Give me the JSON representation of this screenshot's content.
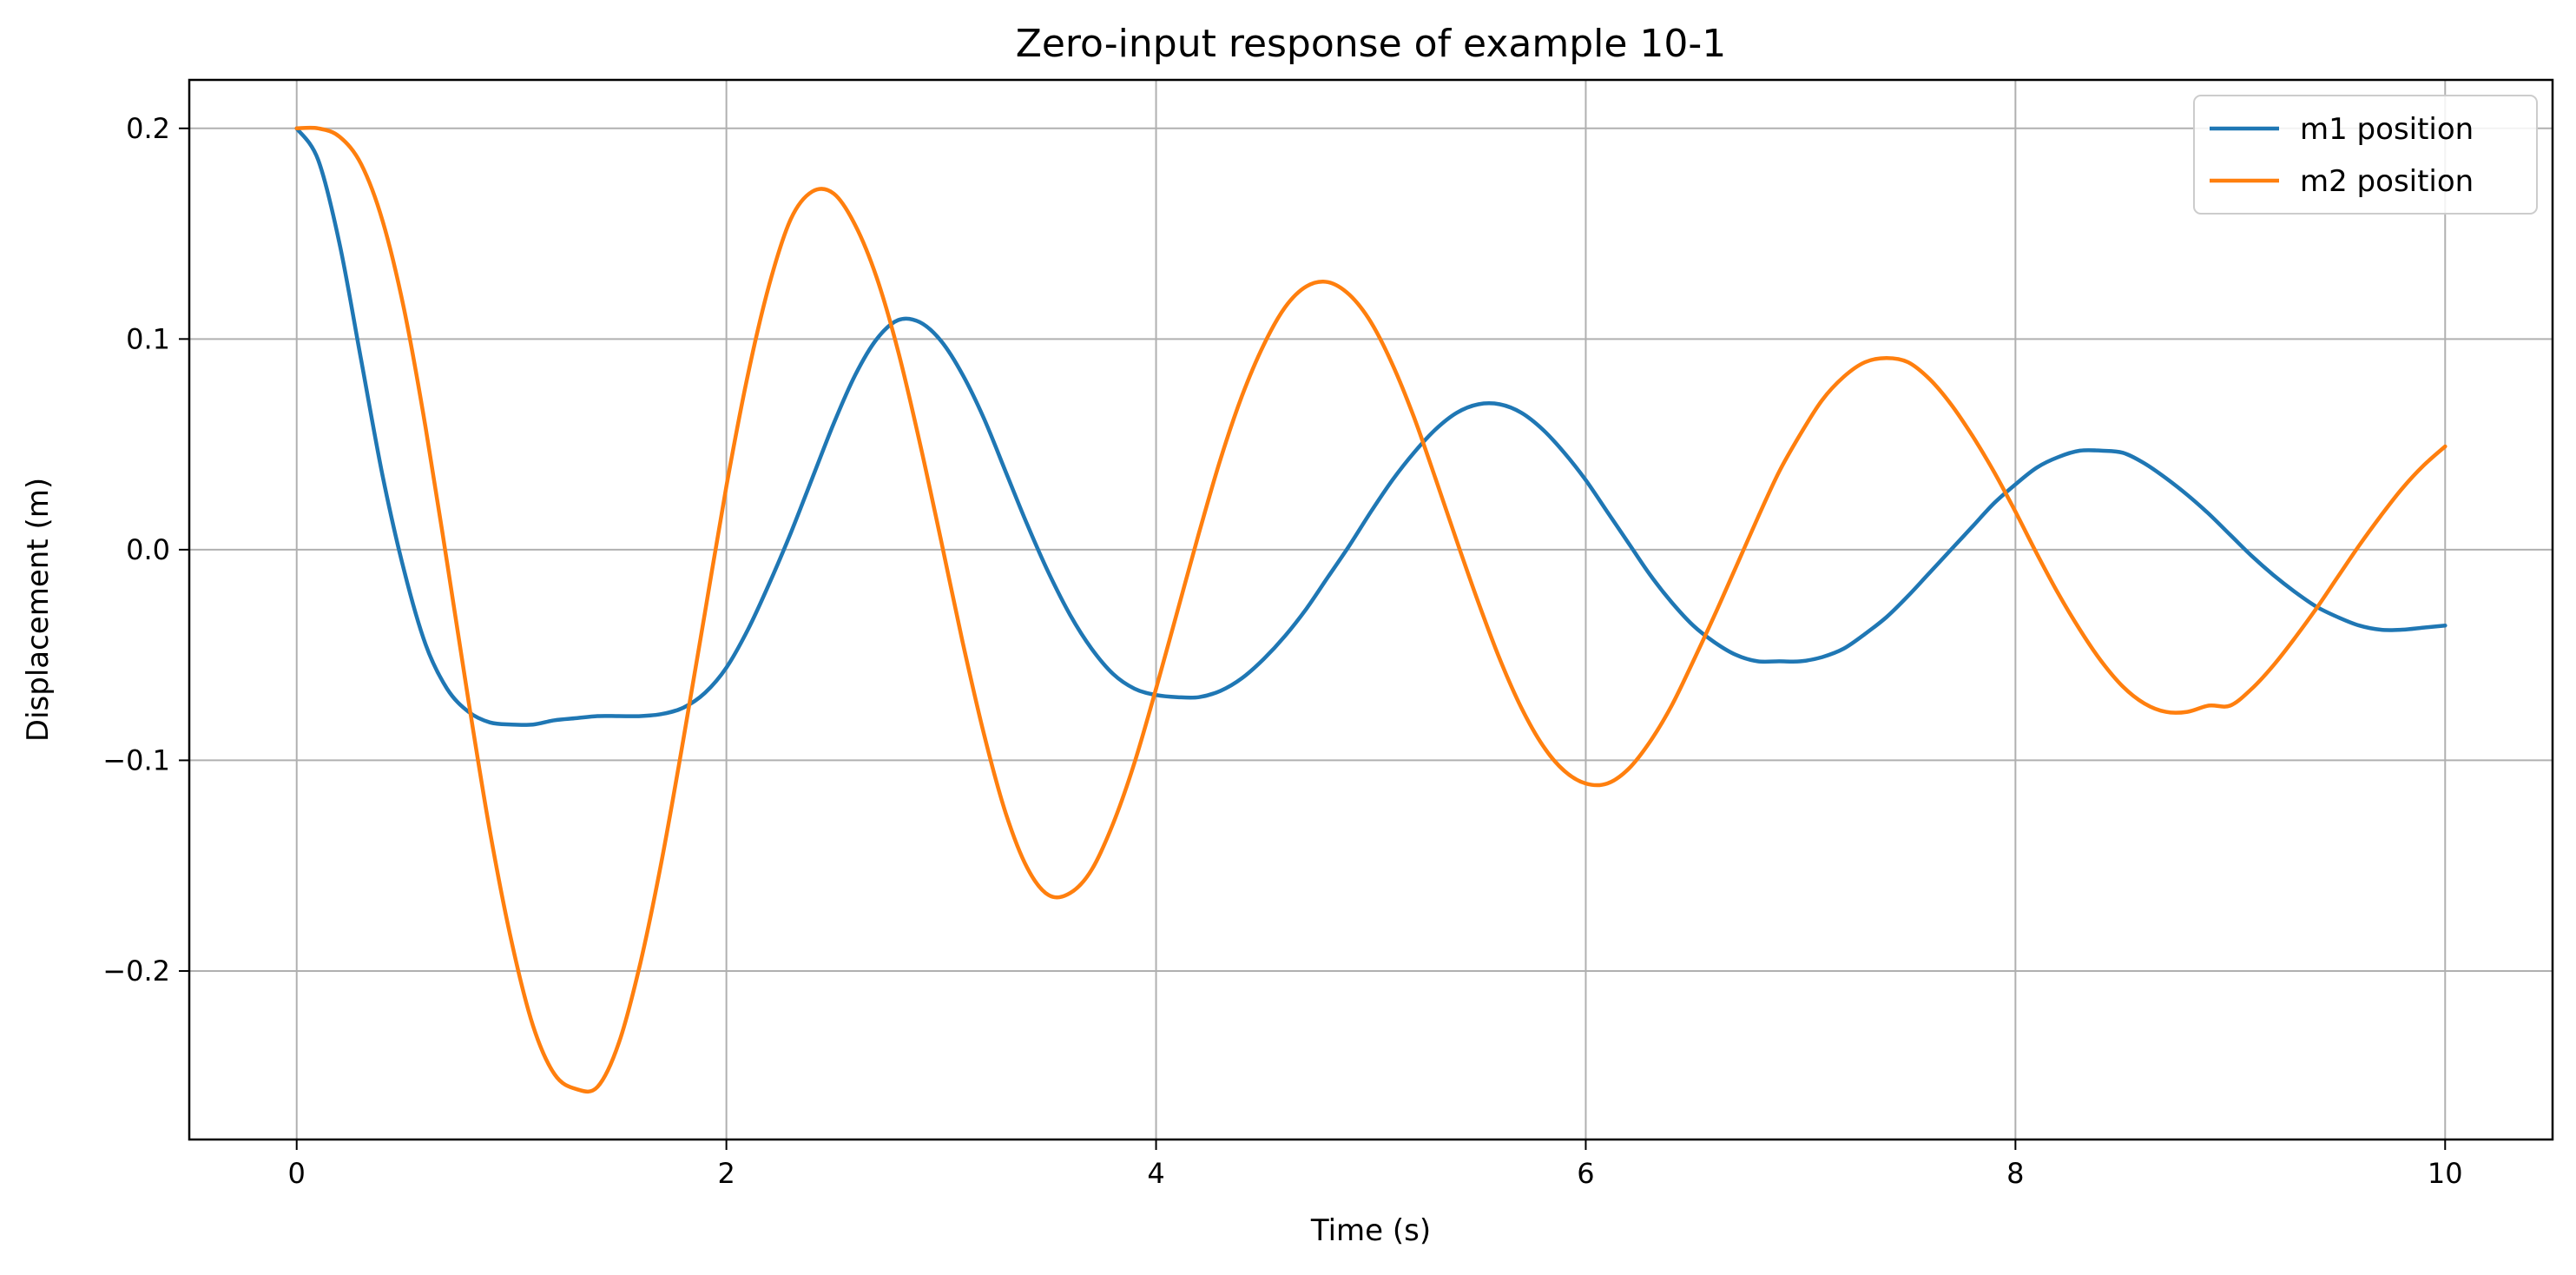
{
  "chart_data": {
    "type": "line",
    "title": "Zero-input response of example 10-1",
    "xlabel": "Time (s)",
    "ylabel": "Displacement (m)",
    "xlim": [
      -0.5,
      10.5
    ],
    "ylim": [
      -0.28,
      0.223
    ],
    "xticks": [
      0,
      2,
      4,
      6,
      8,
      10
    ],
    "xtick_labels": [
      "0",
      "2",
      "4",
      "6",
      "8",
      "10"
    ],
    "yticks": [
      -0.2,
      -0.1,
      0.0,
      0.1,
      0.2
    ],
    "ytick_labels": [
      "−0.2",
      "−0.1",
      "0.0",
      "0.1",
      "0.2"
    ],
    "grid": true,
    "legend_position": "top-right",
    "series": [
      {
        "name": "m1 position",
        "color": "#1f77b4",
        "x": [
          0,
          0.1,
          0.2,
          0.3,
          0.4,
          0.5,
          0.6,
          0.7,
          0.8,
          0.9,
          1.0,
          1.1,
          1.2,
          1.3,
          1.4,
          1.5,
          1.6,
          1.7,
          1.8,
          1.9,
          2.0,
          2.1,
          2.2,
          2.3,
          2.4,
          2.5,
          2.6,
          2.7,
          2.8,
          2.9,
          3.0,
          3.1,
          3.2,
          3.3,
          3.4,
          3.5,
          3.6,
          3.7,
          3.8,
          3.9,
          4.0,
          4.1,
          4.2,
          4.3,
          4.4,
          4.5,
          4.6,
          4.7,
          4.8,
          4.9,
          5.0,
          5.1,
          5.2,
          5.3,
          5.4,
          5.5,
          5.6,
          5.7,
          5.8,
          5.9,
          6.0,
          6.1,
          6.2,
          6.3,
          6.4,
          6.5,
          6.6,
          6.7,
          6.8,
          6.9,
          7.0,
          7.1,
          7.2,
          7.3,
          7.4,
          7.5,
          7.6,
          7.7,
          7.8,
          7.9,
          8.0,
          8.1,
          8.2,
          8.3,
          8.4,
          8.5,
          8.6,
          8.7,
          8.8,
          8.9,
          9.0,
          9.1,
          9.2,
          9.3,
          9.4,
          9.5,
          9.6,
          9.7,
          9.8,
          9.9,
          10.0
        ],
        "y": [
          0.2,
          0.185,
          0.145,
          0.09,
          0.035,
          -0.01,
          -0.045,
          -0.066,
          -0.077,
          -0.082,
          -0.083,
          -0.083,
          -0.081,
          -0.08,
          -0.079,
          -0.079,
          -0.079,
          -0.078,
          -0.075,
          -0.068,
          -0.056,
          -0.038,
          -0.016,
          0.008,
          0.034,
          0.06,
          0.083,
          0.1,
          0.109,
          0.108,
          0.099,
          0.083,
          0.062,
          0.037,
          0.012,
          -0.011,
          -0.031,
          -0.047,
          -0.059,
          -0.066,
          -0.069,
          -0.07,
          -0.07,
          -0.067,
          -0.061,
          -0.052,
          -0.041,
          -0.028,
          -0.013,
          0.002,
          0.018,
          0.033,
          0.046,
          0.057,
          0.065,
          0.069,
          0.069,
          0.065,
          0.057,
          0.046,
          0.033,
          0.018,
          0.003,
          -0.012,
          -0.025,
          -0.036,
          -0.044,
          -0.05,
          -0.053,
          -0.053,
          -0.053,
          -0.051,
          -0.047,
          -0.04,
          -0.032,
          -0.022,
          -0.011,
          0.0,
          0.011,
          0.022,
          0.031,
          0.039,
          0.044,
          0.047,
          0.047,
          0.046,
          0.041,
          0.034,
          0.026,
          0.017,
          0.007,
          -0.003,
          -0.012,
          -0.02,
          -0.027,
          -0.032,
          -0.036,
          -0.038,
          -0.038,
          -0.037,
          -0.036
        ]
      },
      {
        "name": "m2 position",
        "color": "#ff7f0e",
        "x": [
          0,
          0.1,
          0.2,
          0.3,
          0.4,
          0.5,
          0.6,
          0.7,
          0.8,
          0.9,
          1.0,
          1.1,
          1.2,
          1.3,
          1.4,
          1.5,
          1.6,
          1.7,
          1.8,
          1.9,
          2.0,
          2.1,
          2.2,
          2.3,
          2.4,
          2.5,
          2.6,
          2.7,
          2.8,
          2.9,
          3.0,
          3.1,
          3.2,
          3.3,
          3.4,
          3.5,
          3.6,
          3.7,
          3.8,
          3.9,
          4.0,
          4.1,
          4.2,
          4.3,
          4.4,
          4.5,
          4.6,
          4.7,
          4.8,
          4.9,
          5.0,
          5.1,
          5.2,
          5.3,
          5.4,
          5.5,
          5.6,
          5.7,
          5.8,
          5.9,
          6.0,
          6.1,
          6.2,
          6.3,
          6.4,
          6.5,
          6.6,
          6.7,
          6.8,
          6.9,
          7.0,
          7.1,
          7.2,
          7.3,
          7.4,
          7.5,
          7.6,
          7.7,
          7.8,
          7.9,
          8.0,
          8.1,
          8.2,
          8.3,
          8.4,
          8.5,
          8.6,
          8.7,
          8.8,
          8.9,
          9.0,
          9.1,
          9.2,
          9.3,
          9.4,
          9.5,
          9.6,
          9.7,
          9.8,
          9.9,
          10.0
        ],
        "y": [
          0.2,
          0.2,
          0.196,
          0.183,
          0.156,
          0.114,
          0.058,
          -0.006,
          -0.072,
          -0.134,
          -0.186,
          -0.226,
          -0.249,
          -0.256,
          -0.255,
          -0.234,
          -0.196,
          -0.147,
          -0.09,
          -0.03,
          0.03,
          0.083,
          0.126,
          0.157,
          0.17,
          0.169,
          0.154,
          0.129,
          0.094,
          0.051,
          0.004,
          -0.044,
          -0.088,
          -0.125,
          -0.151,
          -0.164,
          -0.163,
          -0.152,
          -0.13,
          -0.101,
          -0.066,
          -0.029,
          0.008,
          0.043,
          0.073,
          0.097,
          0.115,
          0.125,
          0.127,
          0.121,
          0.108,
          0.088,
          0.063,
          0.034,
          0.004,
          -0.025,
          -0.052,
          -0.075,
          -0.093,
          -0.105,
          -0.111,
          -0.111,
          -0.104,
          -0.091,
          -0.074,
          -0.053,
          -0.031,
          -0.008,
          0.015,
          0.037,
          0.055,
          0.071,
          0.082,
          0.089,
          0.091,
          0.089,
          0.081,
          0.069,
          0.054,
          0.037,
          0.018,
          -0.002,
          -0.021,
          -0.038,
          -0.053,
          -0.065,
          -0.073,
          -0.077,
          -0.077,
          -0.074,
          -0.074,
          -0.066,
          -0.055,
          -0.042,
          -0.028,
          -0.013,
          0.002,
          0.016,
          0.029,
          0.04,
          0.049
        ]
      }
    ]
  }
}
